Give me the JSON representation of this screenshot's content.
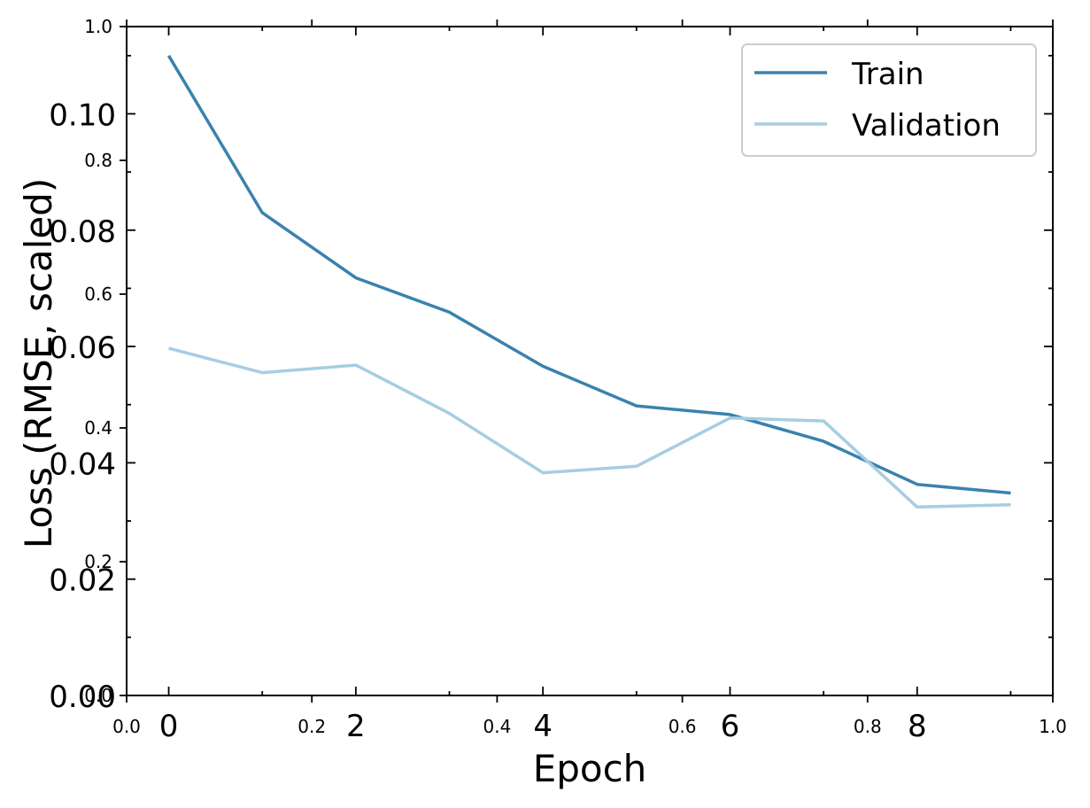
{
  "chart_data": {
    "type": "line",
    "xlabel": "Epoch",
    "ylabel": "Loss (RMSE, scaled)",
    "xlim": [
      -0.45,
      9.45
    ],
    "ylim": [
      0.0,
      0.115
    ],
    "x_ticks": [
      "0",
      "2",
      "4",
      "6",
      "8"
    ],
    "y_ticks": [
      "0.00",
      "0.02",
      "0.04",
      "0.06",
      "0.08",
      "0.10"
    ],
    "overlay_x_ticks": [
      "0.0",
      "0.2",
      "0.4",
      "0.6",
      "0.8",
      "1.0"
    ],
    "overlay_y_ticks": [
      "0.0",
      "0.2",
      "0.4",
      "0.6",
      "0.8",
      "1.0"
    ],
    "x": [
      0,
      1,
      2,
      3,
      4,
      5,
      6,
      7,
      8,
      9
    ],
    "series": [
      {
        "name": "Train",
        "color": "#3a82ad",
        "values": [
          0.11,
          0.083,
          0.0718,
          0.0659,
          0.0566,
          0.0498,
          0.0483,
          0.0437,
          0.0363,
          0.0348
        ]
      },
      {
        "name": "Validation",
        "color": "#a6cde3",
        "values": [
          0.0597,
          0.0555,
          0.0568,
          0.0485,
          0.0383,
          0.0394,
          0.0477,
          0.0472,
          0.0324,
          0.0328
        ]
      }
    ],
    "legend": {
      "position": "top-right"
    },
    "grid": false
  }
}
